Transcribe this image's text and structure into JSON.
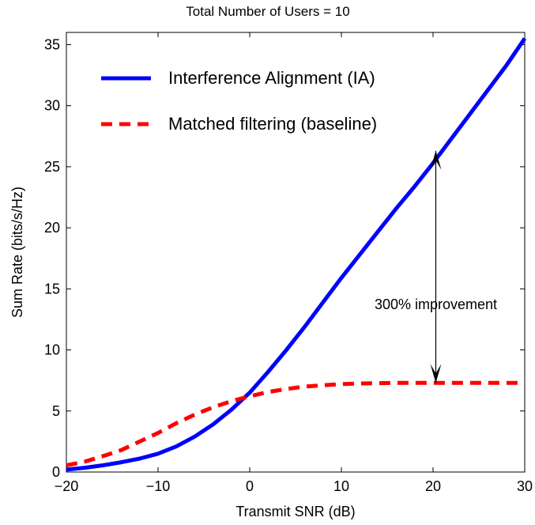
{
  "chart_data": {
    "type": "line",
    "title": "Total Number of Users = 10",
    "xlabel": "Transmit SNR (dB)",
    "ylabel": "Sum Rate (bits/s/Hz)",
    "xlim": [
      -20,
      30
    ],
    "ylim": [
      0,
      36
    ],
    "xticks": [
      -20,
      -10,
      0,
      10,
      20,
      30
    ],
    "xtick_labels": [
      "−20",
      "−10",
      "0",
      "10",
      "20",
      "30"
    ],
    "yticks": [
      0,
      5,
      10,
      15,
      20,
      25,
      30,
      35
    ],
    "ytick_labels": [
      "0",
      "5",
      "10",
      "15",
      "20",
      "25",
      "30",
      "35"
    ],
    "grid": false,
    "legend_position": "top-left",
    "series": [
      {
        "name": "Interference Alignment (IA)",
        "color": "#0000ff",
        "style": "solid",
        "x": [
          -20,
          -18,
          -16,
          -14,
          -12,
          -10,
          -8,
          -6,
          -4,
          -2,
          0,
          2,
          4,
          6,
          8,
          10,
          12,
          14,
          16,
          18,
          20,
          22,
          24,
          26,
          28,
          30
        ],
        "y": [
          0.2,
          0.35,
          0.55,
          0.8,
          1.1,
          1.5,
          2.1,
          2.9,
          3.9,
          5.1,
          6.5,
          8.2,
          10.0,
          11.9,
          13.9,
          15.9,
          17.8,
          19.7,
          21.6,
          23.4,
          25.3,
          27.3,
          29.3,
          31.3,
          33.3,
          35.5
        ]
      },
      {
        "name": "Matched filtering (baseline)",
        "color": "#ff0000",
        "style": "dashed",
        "x": [
          -20,
          -18,
          -16,
          -14,
          -12,
          -10,
          -8,
          -6,
          -4,
          -2,
          0,
          2,
          4,
          6,
          8,
          10,
          12,
          14,
          16,
          18,
          20,
          22,
          24,
          26,
          28,
          30
        ],
        "y": [
          0.55,
          0.85,
          1.3,
          1.8,
          2.5,
          3.2,
          4.0,
          4.7,
          5.3,
          5.8,
          6.2,
          6.55,
          6.8,
          7.0,
          7.1,
          7.2,
          7.25,
          7.28,
          7.3,
          7.3,
          7.3,
          7.3,
          7.3,
          7.3,
          7.3,
          7.3
        ]
      }
    ],
    "annotations": [
      {
        "text": "300% improvement",
        "x": 20.3,
        "y_from": 26.3,
        "y_to": 7.3
      }
    ]
  }
}
